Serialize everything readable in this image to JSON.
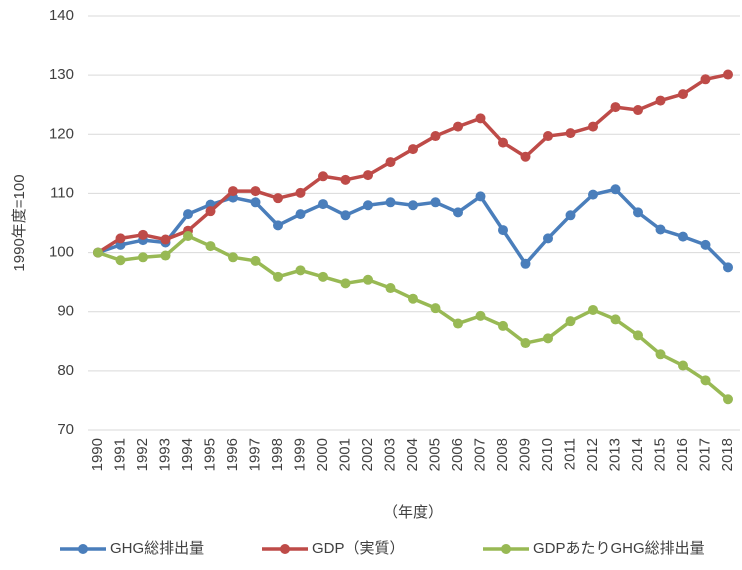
{
  "chart_data": {
    "type": "line",
    "y_label": "1990年度=100",
    "x_label": "（年度）",
    "categories": [
      "1990",
      "1991",
      "1992",
      "1993",
      "1994",
      "1995",
      "1996",
      "1997",
      "1998",
      "1999",
      "2000",
      "2001",
      "2002",
      "2003",
      "2004",
      "2005",
      "2006",
      "2007",
      "2008",
      "2009",
      "2010",
      "2011",
      "2012",
      "2013",
      "2014",
      "2015",
      "2016",
      "2017",
      "2018"
    ],
    "series": [
      {
        "name": "GHG総排出量",
        "color": "#4a7ebb",
        "values": [
          100,
          101.3,
          102.1,
          101.7,
          106.5,
          108.1,
          109.3,
          108.5,
          104.6,
          106.5,
          108.2,
          106.3,
          108,
          108.5,
          108,
          108.5,
          106.8,
          109.5,
          103.8,
          98.1,
          102.4,
          106.3,
          109.8,
          110.7,
          106.8,
          103.9,
          102.7,
          101.3,
          97.5
        ]
      },
      {
        "name": "GDP（実質）",
        "color": "#be4b48",
        "values": [
          100,
          102.4,
          103,
          102.2,
          103.7,
          107,
          110.4,
          110.4,
          109.2,
          110.1,
          112.9,
          112.3,
          113.1,
          115.3,
          117.5,
          119.7,
          121.3,
          122.7,
          118.6,
          116.2,
          119.7,
          120.2,
          121.3,
          124.6,
          124.1,
          125.7,
          126.8,
          129.3,
          130.1
        ]
      },
      {
        "name": "GDPあたりGHG総排出量",
        "color": "#98b954",
        "values": [
          100,
          98.7,
          99.2,
          99.5,
          102.8,
          101.1,
          99.2,
          98.6,
          95.9,
          97,
          95.9,
          94.8,
          95.4,
          94,
          92.2,
          90.6,
          88,
          89.3,
          87.6,
          84.7,
          85.5,
          88.4,
          90.3,
          88.7,
          86,
          82.8,
          80.9,
          78.4,
          75.2
        ]
      }
    ],
    "ylim": [
      70,
      140
    ],
    "yticks": [
      70,
      80,
      90,
      100,
      110,
      120,
      130,
      140
    ],
    "grid": true,
    "legend": "bottom"
  }
}
